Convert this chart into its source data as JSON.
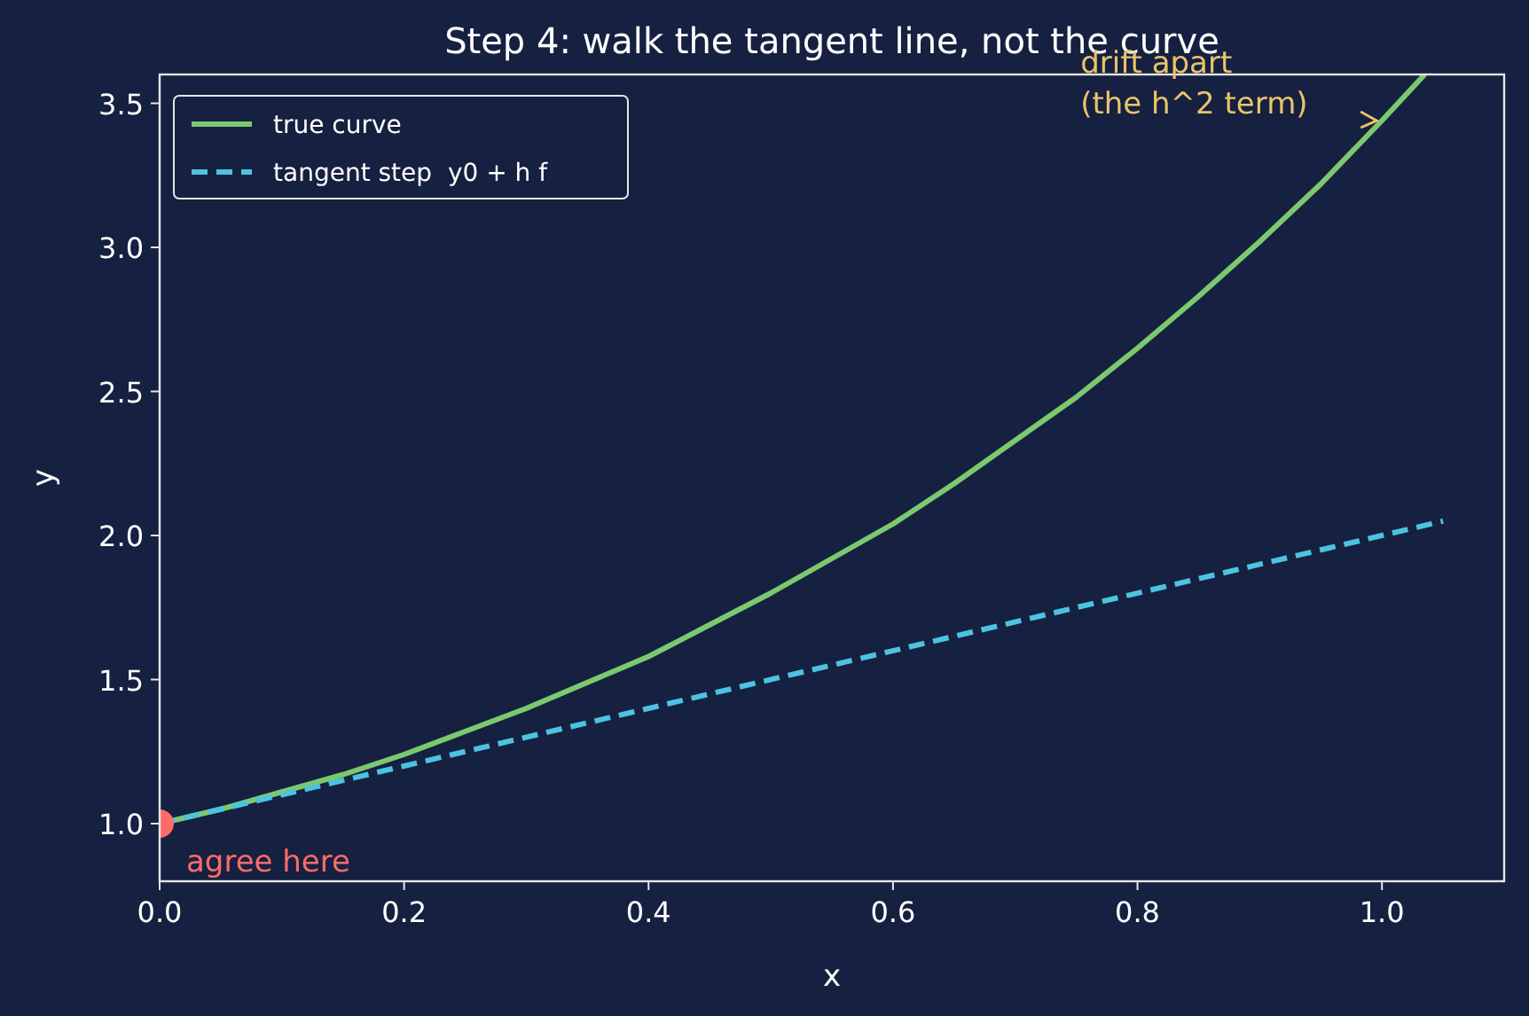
{
  "chart_data": {
    "type": "line",
    "title": "Step 4: walk the tangent line, not the curve",
    "xlabel": "x",
    "ylabel": "y",
    "xlim": [
      0,
      1.1
    ],
    "ylim": [
      0.8,
      3.6
    ],
    "xticks": [
      {
        "value": 0,
        "label": "0.0"
      },
      {
        "value": 0.2,
        "label": "0.2"
      },
      {
        "value": 0.4,
        "label": "0.4"
      },
      {
        "value": 0.6,
        "label": "0.6"
      },
      {
        "value": 0.8,
        "label": "0.8"
      },
      {
        "value": 1,
        "label": "1.0"
      }
    ],
    "yticks": [
      {
        "value": 1,
        "label": "1.0"
      },
      {
        "value": 1.5,
        "label": "1.5"
      },
      {
        "value": 2,
        "label": "2.0"
      },
      {
        "value": 2.5,
        "label": "2.5"
      },
      {
        "value": 3,
        "label": "3.0"
      },
      {
        "value": 3.5,
        "label": "3.5"
      }
    ],
    "grid": false,
    "legend": "top left",
    "series": [
      {
        "name": "true curve",
        "color": "#7bc96f",
        "line_style": "solid",
        "x": [
          0,
          0.05,
          0.1,
          0.15,
          0.2,
          0.25,
          0.3,
          0.35,
          0.4,
          0.45,
          0.5,
          0.55,
          0.6,
          0.65,
          0.7,
          0.75,
          0.8,
          0.85,
          0.9,
          0.95,
          1.0,
          1.035
        ],
        "values": [
          1,
          1.05,
          1.11,
          1.17,
          1.24,
          1.32,
          1.4,
          1.49,
          1.58,
          1.69,
          1.8,
          1.92,
          2.04,
          2.18,
          2.33,
          2.48,
          2.65,
          2.83,
          3.02,
          3.22,
          3.44,
          3.6
        ]
      },
      {
        "name": "tangent step  y0 + h f",
        "color": "#4cc3e0",
        "line_style": "dashed",
        "x": [
          0,
          1.05
        ],
        "values": [
          1,
          2.05
        ]
      },
      {
        "type": "scatter",
        "color": "#ff6b6b",
        "marker": "circle",
        "x": [
          0
        ],
        "values": [
          1
        ]
      }
    ],
    "annotations": [
      {
        "text": "drift apart\n(the h^2 term)",
        "x": 1.0,
        "y": 3.44
      },
      {
        "text": "agree here",
        "x": 0,
        "y": 1
      }
    ]
  }
}
